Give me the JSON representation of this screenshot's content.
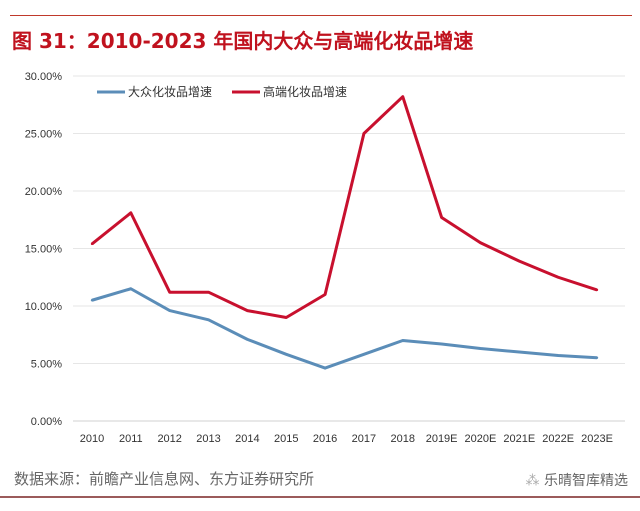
{
  "figure_title": "图 31：2010-2023 年国内大众与高端化妆品增速",
  "source": "数据来源：前瞻产业信息网、东方证券研究所",
  "watermark": "乐晴智库精选",
  "chart_data": {
    "type": "line",
    "categories": [
      "2010",
      "2011",
      "2012",
      "2013",
      "2014",
      "2015",
      "2016",
      "2017",
      "2018",
      "2019E",
      "2020E",
      "2021E",
      "2022E",
      "2023E"
    ],
    "ylim": [
      0,
      30
    ],
    "yticks": [
      "0.00%",
      "5.00%",
      "10.00%",
      "15.00%",
      "20.00%",
      "25.00%",
      "30.00%"
    ],
    "grid": true,
    "legend_position": "top-left",
    "series": [
      {
        "name": "大众化妆品增速",
        "color": "#5b8db8",
        "values": [
          10.5,
          11.5,
          9.6,
          8.8,
          7.1,
          5.8,
          4.6,
          5.8,
          7.0,
          6.7,
          6.3,
          6.0,
          5.7,
          5.5
        ]
      },
      {
        "name": "高端化妆品增速",
        "color": "#c8102e",
        "values": [
          15.4,
          18.1,
          11.2,
          11.2,
          9.6,
          9.0,
          11.0,
          25.0,
          28.2,
          17.7,
          15.5,
          13.9,
          12.5,
          11.4
        ]
      }
    ]
  }
}
